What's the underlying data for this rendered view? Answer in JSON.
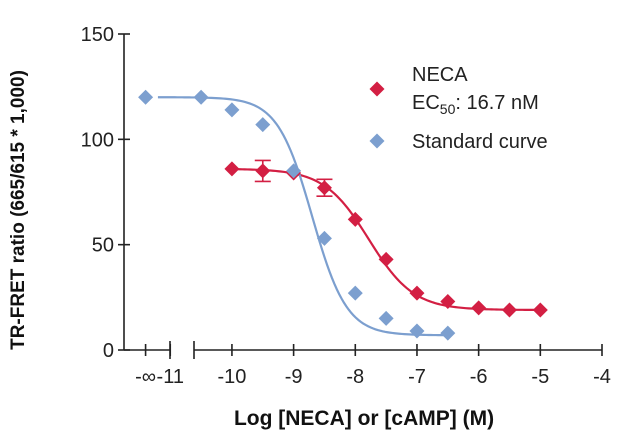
{
  "chart_data": {
    "type": "scatter",
    "xlabel": "Log [NECA] or [cAMP] (M)",
    "ylabel": "TR-FRET ratio (665/615 * 1,000)",
    "xlim": [
      -11.75,
      -4
    ],
    "ylim": [
      0,
      150
    ],
    "x_axis_break": true,
    "x_ticks": [
      {
        "value": -11.4,
        "label": "-∞"
      },
      {
        "value": -11,
        "label": "-11"
      },
      {
        "value": -10,
        "label": "-10"
      },
      {
        "value": -9,
        "label": "-9"
      },
      {
        "value": -8,
        "label": "-8"
      },
      {
        "value": -7,
        "label": "-7"
      },
      {
        "value": -6,
        "label": "-6"
      },
      {
        "value": -5,
        "label": "-5"
      },
      {
        "value": -4,
        "label": "-4"
      }
    ],
    "y_ticks": [
      0,
      50,
      100,
      150
    ],
    "grid": false,
    "legend_position": "top-right",
    "series": [
      {
        "name": "NECA",
        "subtitle_prefix": "EC",
        "subtitle_subscript": "50",
        "subtitle_suffix": ": 16.7 nM",
        "color": "#d31f43",
        "marker": "diamond",
        "x": [
          -10,
          -9.5,
          -9,
          -8.5,
          -8,
          -7.5,
          -7,
          -6.5,
          -6,
          -5.5,
          -5
        ],
        "y": [
          86,
          85,
          84,
          77,
          62,
          43,
          27,
          23,
          20,
          19,
          19
        ],
        "error": [
          0,
          5,
          0,
          4,
          0,
          0,
          0,
          0,
          0,
          0,
          0
        ],
        "fit": {
          "top": 86,
          "bottom": 19,
          "logec50": -7.78,
          "hill": 1.2,
          "x_start": -10,
          "x_end": -5
        }
      },
      {
        "name": "Standard curve",
        "color": "#7c9fcf",
        "marker": "diamond",
        "x": [
          -11.4,
          -10.5,
          -10,
          -9.5,
          -9,
          -8.5,
          -8,
          -7.5,
          -7,
          -6.5
        ],
        "y": [
          120,
          120,
          114,
          107,
          85,
          53,
          27,
          15,
          9,
          8
        ],
        "error": [
          0,
          0,
          0,
          0,
          0,
          0,
          0,
          0,
          0,
          0
        ],
        "fit": {
          "top": 120,
          "bottom": 7,
          "logec50": -8.7,
          "hill": 1.55,
          "x_start": -11.2,
          "x_end": -6.5
        }
      }
    ]
  }
}
